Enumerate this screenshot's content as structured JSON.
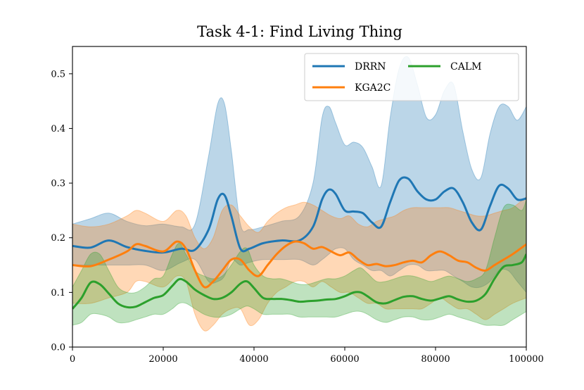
{
  "chart_data": {
    "type": "line",
    "title": "Task 4-1: Find Living Thing",
    "xlabel": "",
    "ylabel": "",
    "xlim": [
      0,
      100000
    ],
    "ylim": [
      0,
      0.55
    ],
    "xticks": [
      0,
      20000,
      40000,
      60000,
      80000,
      100000
    ],
    "xtick_labels": [
      "0",
      "20000",
      "40000",
      "60000",
      "80000",
      "100000"
    ],
    "yticks": [
      0.0,
      0.1,
      0.2,
      0.3,
      0.4,
      0.5
    ],
    "ytick_labels": [
      "0.0",
      "0.1",
      "0.2",
      "0.3",
      "0.4",
      "0.5"
    ],
    "legend_position": "top-right",
    "series": [
      {
        "name": "DRRN",
        "color": "#1f77b4",
        "x": [
          0,
          4000,
          8000,
          12000,
          16000,
          20000,
          24000,
          27000,
          30000,
          32000,
          33500,
          35000,
          37000,
          39000,
          42000,
          46000,
          50000,
          53000,
          55000,
          56500,
          58000,
          60000,
          62000,
          64000,
          66000,
          68000,
          70000,
          72000,
          74000,
          76000,
          78000,
          80000,
          82000,
          84000,
          86000,
          88000,
          90000,
          92000,
          94000,
          96000,
          98000,
          100000
        ],
        "mean": [
          0.185,
          0.182,
          0.195,
          0.183,
          0.176,
          0.173,
          0.18,
          0.178,
          0.215,
          0.27,
          0.278,
          0.24,
          0.18,
          0.18,
          0.19,
          0.195,
          0.195,
          0.22,
          0.27,
          0.288,
          0.28,
          0.25,
          0.248,
          0.245,
          0.228,
          0.22,
          0.265,
          0.305,
          0.308,
          0.285,
          0.27,
          0.27,
          0.285,
          0.29,
          0.265,
          0.228,
          0.215,
          0.258,
          0.295,
          0.29,
          0.27,
          0.272
        ],
        "upper": [
          0.225,
          0.235,
          0.245,
          0.23,
          0.222,
          0.225,
          0.22,
          0.225,
          0.35,
          0.445,
          0.445,
          0.36,
          0.225,
          0.215,
          0.22,
          0.23,
          0.24,
          0.3,
          0.42,
          0.44,
          0.41,
          0.37,
          0.375,
          0.365,
          0.33,
          0.295,
          0.42,
          0.51,
          0.53,
          0.48,
          0.42,
          0.425,
          0.47,
          0.48,
          0.395,
          0.325,
          0.31,
          0.39,
          0.44,
          0.44,
          0.415,
          0.44
        ],
        "lower": [
          0.15,
          0.15,
          0.15,
          0.15,
          0.15,
          0.14,
          0.155,
          0.16,
          0.12,
          0.12,
          0.13,
          0.16,
          0.15,
          0.155,
          0.16,
          0.16,
          0.16,
          0.15,
          0.16,
          0.17,
          0.18,
          0.18,
          0.16,
          0.15,
          0.14,
          0.14,
          0.13,
          0.14,
          0.15,
          0.15,
          0.14,
          0.14,
          0.14,
          0.13,
          0.12,
          0.11,
          0.11,
          0.12,
          0.14,
          0.14,
          0.12,
          0.1
        ]
      },
      {
        "name": "KGA2C",
        "color": "#ff7f0e",
        "x": [
          0,
          4000,
          8000,
          12000,
          14000,
          16000,
          20000,
          23000,
          25000,
          27000,
          29000,
          31000,
          33000,
          35000,
          37000,
          39000,
          41000,
          43000,
          45000,
          47000,
          49000,
          51000,
          53000,
          55000,
          57000,
          59000,
          61000,
          63000,
          65000,
          67000,
          69000,
          71000,
          73000,
          75000,
          77000,
          79000,
          81000,
          83000,
          85000,
          87000,
          89000,
          91000,
          93000,
          95000,
          97000,
          100000
        ],
        "mean": [
          0.15,
          0.148,
          0.16,
          0.175,
          0.188,
          0.185,
          0.175,
          0.193,
          0.18,
          0.14,
          0.11,
          0.12,
          0.14,
          0.16,
          0.16,
          0.14,
          0.13,
          0.15,
          0.17,
          0.185,
          0.193,
          0.19,
          0.18,
          0.183,
          0.175,
          0.168,
          0.173,
          0.16,
          0.15,
          0.152,
          0.148,
          0.15,
          0.155,
          0.158,
          0.155,
          0.168,
          0.175,
          0.168,
          0.158,
          0.155,
          0.145,
          0.14,
          0.15,
          0.16,
          0.17,
          0.188
        ],
        "upper": [
          0.225,
          0.22,
          0.225,
          0.24,
          0.25,
          0.245,
          0.23,
          0.25,
          0.24,
          0.2,
          0.18,
          0.2,
          0.25,
          0.26,
          0.24,
          0.22,
          0.21,
          0.23,
          0.245,
          0.255,
          0.26,
          0.265,
          0.26,
          0.25,
          0.24,
          0.235,
          0.24,
          0.225,
          0.22,
          0.23,
          0.235,
          0.24,
          0.25,
          0.255,
          0.255,
          0.255,
          0.255,
          0.255,
          0.25,
          0.245,
          0.24,
          0.24,
          0.245,
          0.25,
          0.255,
          0.275
        ],
        "lower": [
          0.08,
          0.08,
          0.09,
          0.1,
          0.12,
          0.12,
          0.11,
          0.13,
          0.12,
          0.06,
          0.03,
          0.04,
          0.06,
          0.07,
          0.07,
          0.04,
          0.05,
          0.08,
          0.1,
          0.11,
          0.12,
          0.12,
          0.11,
          0.12,
          0.11,
          0.1,
          0.1,
          0.09,
          0.08,
          0.08,
          0.07,
          0.07,
          0.07,
          0.07,
          0.07,
          0.08,
          0.09,
          0.08,
          0.07,
          0.07,
          0.06,
          0.05,
          0.06,
          0.07,
          0.08,
          0.09
        ]
      },
      {
        "name": "CALM",
        "color": "#2ca02c",
        "x": [
          0,
          2000,
          4000,
          6000,
          8000,
          10000,
          12000,
          14000,
          16000,
          18000,
          20000,
          22000,
          23500,
          25000,
          27000,
          29000,
          31000,
          33000,
          35000,
          37000,
          38500,
          40000,
          42000,
          44000,
          46000,
          48000,
          50000,
          52000,
          54000,
          56000,
          58000,
          60000,
          62000,
          63500,
          65000,
          67000,
          69000,
          71000,
          73000,
          75000,
          77000,
          79000,
          81000,
          83000,
          85000,
          87000,
          89000,
          91000,
          93000,
          95000,
          97000,
          99000,
          100000
        ],
        "mean": [
          0.07,
          0.09,
          0.118,
          0.115,
          0.098,
          0.08,
          0.073,
          0.074,
          0.082,
          0.09,
          0.095,
          0.112,
          0.124,
          0.12,
          0.105,
          0.095,
          0.088,
          0.09,
          0.1,
          0.116,
          0.12,
          0.108,
          0.09,
          0.088,
          0.088,
          0.086,
          0.083,
          0.084,
          0.085,
          0.087,
          0.088,
          0.093,
          0.1,
          0.1,
          0.093,
          0.082,
          0.08,
          0.086,
          0.092,
          0.093,
          0.088,
          0.085,
          0.089,
          0.093,
          0.087,
          0.083,
          0.085,
          0.097,
          0.125,
          0.147,
          0.15,
          0.155,
          0.17
        ],
        "upper": [
          0.11,
          0.14,
          0.17,
          0.17,
          0.14,
          0.11,
          0.1,
          0.1,
          0.11,
          0.125,
          0.13,
          0.17,
          0.19,
          0.17,
          0.14,
          0.13,
          0.125,
          0.13,
          0.15,
          0.175,
          0.18,
          0.15,
          0.13,
          0.125,
          0.125,
          0.12,
          0.115,
          0.115,
          0.12,
          0.125,
          0.125,
          0.13,
          0.14,
          0.145,
          0.135,
          0.12,
          0.12,
          0.125,
          0.13,
          0.13,
          0.125,
          0.12,
          0.125,
          0.13,
          0.125,
          0.12,
          0.125,
          0.14,
          0.2,
          0.255,
          0.26,
          0.25,
          0.27
        ],
        "lower": [
          0.04,
          0.045,
          0.06,
          0.06,
          0.055,
          0.045,
          0.045,
          0.05,
          0.055,
          0.06,
          0.06,
          0.07,
          0.08,
          0.08,
          0.07,
          0.06,
          0.055,
          0.055,
          0.06,
          0.07,
          0.075,
          0.07,
          0.06,
          0.06,
          0.06,
          0.06,
          0.055,
          0.055,
          0.055,
          0.055,
          0.055,
          0.06,
          0.065,
          0.065,
          0.06,
          0.05,
          0.045,
          0.05,
          0.055,
          0.055,
          0.05,
          0.05,
          0.055,
          0.06,
          0.055,
          0.05,
          0.045,
          0.04,
          0.04,
          0.04,
          0.05,
          0.06,
          0.065
        ]
      }
    ]
  }
}
